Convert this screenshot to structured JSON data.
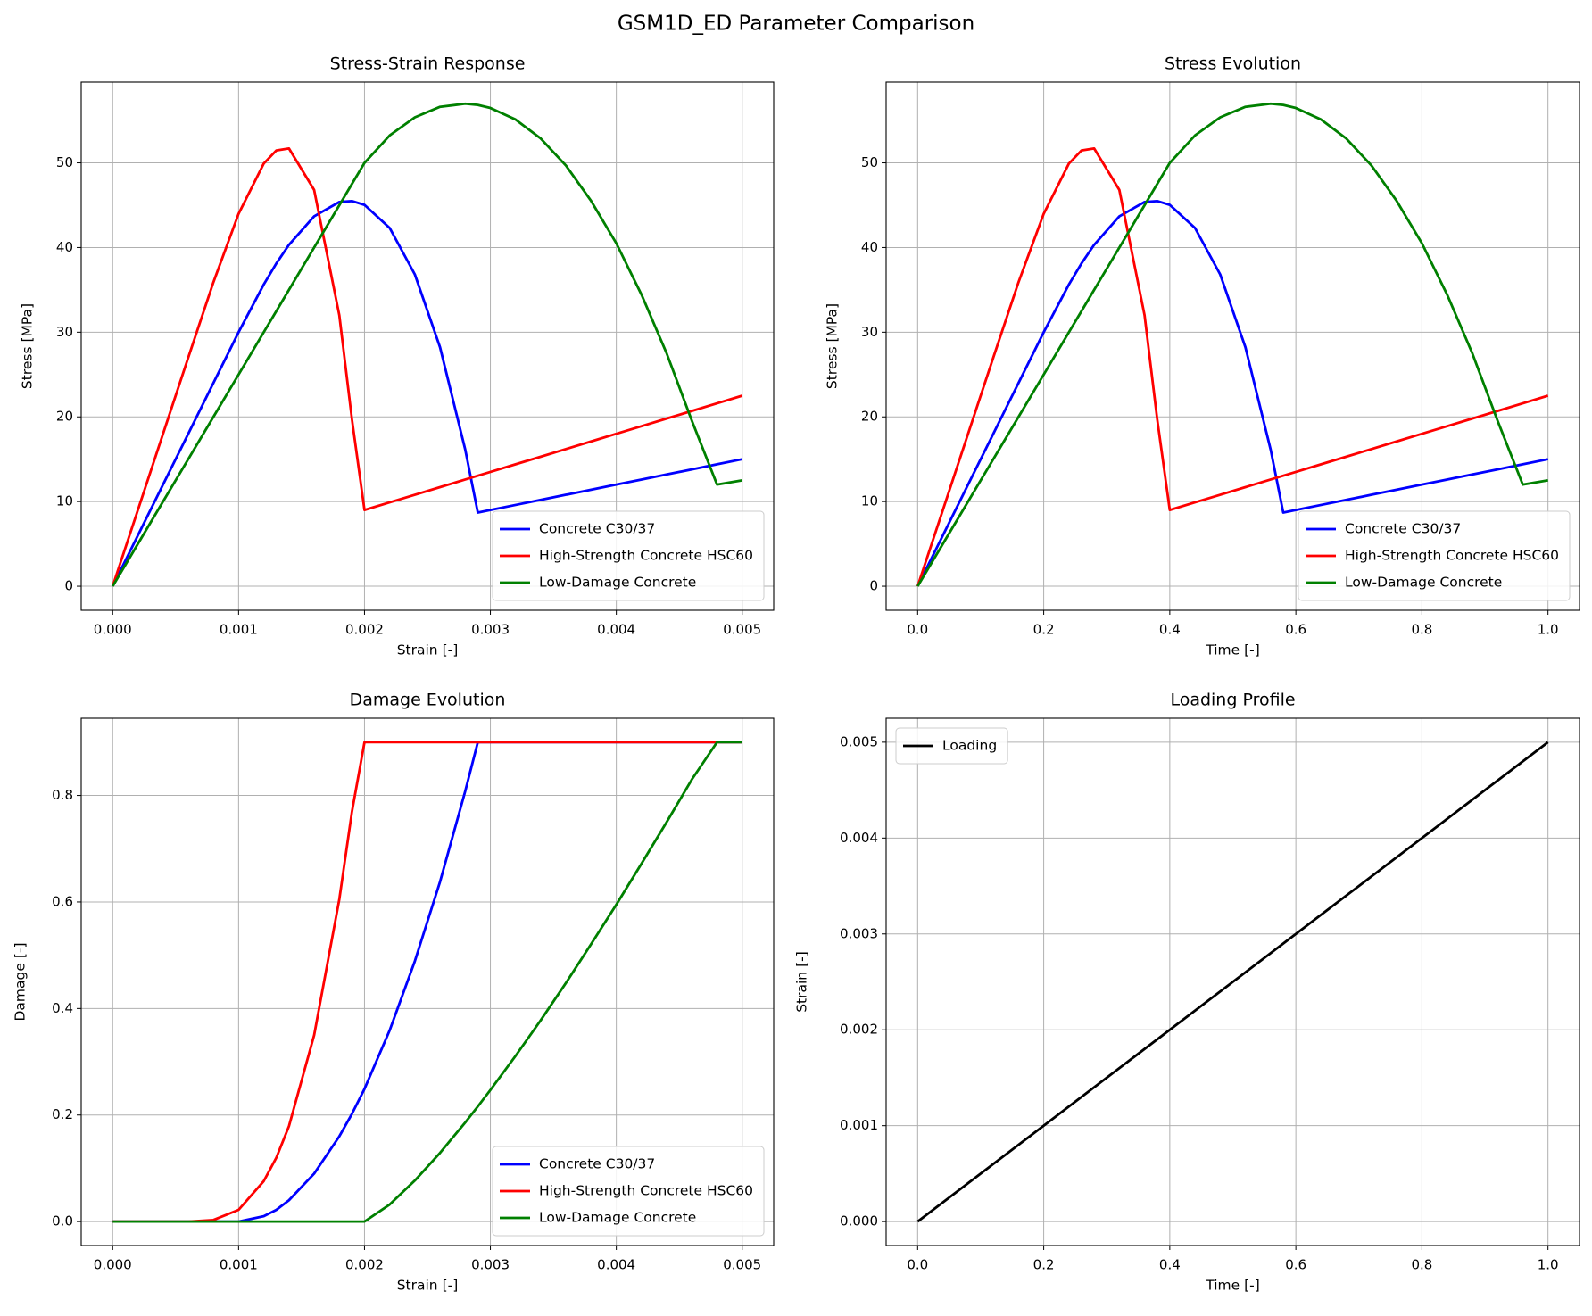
{
  "title": "GSM1D_ED Parameter Comparison",
  "chart_data": [
    {
      "type": "line",
      "title": "Stress-Strain Response",
      "xlabel": "Strain [-]",
      "ylabel": "Stress [MPa]",
      "x": [
        0,
        0.0002,
        0.0004,
        0.0006,
        0.0008,
        0.001,
        0.0012,
        0.0013,
        0.0014,
        0.0016,
        0.0018,
        0.0019,
        0.002,
        0.0022,
        0.0024,
        0.0026,
        0.0028,
        0.0029,
        0.003,
        0.0032,
        0.0034,
        0.0036,
        0.0038,
        0.004,
        0.0042,
        0.0044,
        0.0046,
        0.0048,
        0.005
      ],
      "series": [
        {
          "name": "Concrete C30/37",
          "color": "#0000ff",
          "values": [
            0,
            6,
            12,
            18,
            24,
            30,
            35.64,
            38.13,
            40.32,
            43.69,
            45.38,
            45.49,
            45.04,
            42.31,
            36.82,
            28.22,
            16.14,
            8.7,
            9,
            9.6,
            10.2,
            10.8,
            11.4,
            12,
            12.6,
            13.2,
            13.8,
            14.4,
            15
          ]
        },
        {
          "name": "High-Strength Concrete HSC60",
          "color": "#ff0000",
          "values": [
            0,
            9,
            18,
            27,
            35.9,
            43.99,
            49.92,
            51.47,
            51.7,
            46.8,
            32.0,
            19.75,
            9,
            9.9,
            10.8,
            11.7,
            12.6,
            13.05,
            13.5,
            14.4,
            15.3,
            16.2,
            17.1,
            18,
            18.9,
            19.8,
            20.7,
            21.6,
            22.5
          ]
        },
        {
          "name": "Low-Damage Concrete",
          "color": "#008000",
          "values": [
            0,
            5,
            10,
            15,
            20,
            25,
            30,
            32.5,
            35,
            40,
            45,
            47.5,
            50,
            53.24,
            55.38,
            56.62,
            56.98,
            56.84,
            56.48,
            55.12,
            52.87,
            49.68,
            45.5,
            40.5,
            34.44,
            27.5,
            19.55,
            12,
            12.5
          ]
        }
      ],
      "xlim": [
        -0.00025,
        0.00525
      ],
      "ylim": [
        -2.84,
        59.54
      ],
      "xticks": [
        {
          "value": 0,
          "label": "0.000"
        },
        {
          "value": 0.001,
          "label": "0.001"
        },
        {
          "value": 0.002,
          "label": "0.002"
        },
        {
          "value": 0.003,
          "label": "0.003"
        },
        {
          "value": 0.004,
          "label": "0.004"
        },
        {
          "value": 0.005,
          "label": "0.005"
        }
      ],
      "yticks": [
        0,
        10,
        20,
        30,
        40,
        50
      ],
      "grid": true,
      "legend": "lower right"
    },
    {
      "type": "line",
      "title": "Stress Evolution",
      "xlabel": "Time [-]",
      "ylabel": "Stress [MPa]",
      "x": [
        0,
        0.04,
        0.08,
        0.12,
        0.16,
        0.2,
        0.24,
        0.26,
        0.28,
        0.32,
        0.36,
        0.38,
        0.4,
        0.44,
        0.48,
        0.52,
        0.56,
        0.58,
        0.6,
        0.64,
        0.68,
        0.72,
        0.76,
        0.8,
        0.84,
        0.88,
        0.92,
        0.96,
        1
      ],
      "series": [
        {
          "name": "Concrete C30/37",
          "color": "#0000ff",
          "values": [
            0,
            6,
            12,
            18,
            24,
            30,
            35.64,
            38.13,
            40.32,
            43.69,
            45.38,
            45.49,
            45.04,
            42.31,
            36.82,
            28.22,
            16.14,
            8.7,
            9,
            9.6,
            10.2,
            10.8,
            11.4,
            12,
            12.6,
            13.2,
            13.8,
            14.4,
            15
          ]
        },
        {
          "name": "High-Strength Concrete HSC60",
          "color": "#ff0000",
          "values": [
            0,
            9,
            18,
            27,
            35.9,
            43.99,
            49.92,
            51.47,
            51.7,
            46.8,
            32.0,
            19.75,
            9,
            9.9,
            10.8,
            11.7,
            12.6,
            13.05,
            13.5,
            14.4,
            15.3,
            16.2,
            17.1,
            18,
            18.9,
            19.8,
            20.7,
            21.6,
            22.5
          ]
        },
        {
          "name": "Low-Damage Concrete",
          "color": "#008000",
          "values": [
            0,
            5,
            10,
            15,
            20,
            25,
            30,
            32.5,
            35,
            40,
            45,
            47.5,
            50,
            53.24,
            55.38,
            56.62,
            56.98,
            56.84,
            56.48,
            55.12,
            52.87,
            49.68,
            45.5,
            40.5,
            34.44,
            27.5,
            19.55,
            12,
            12.5
          ]
        }
      ],
      "xlim": [
        -0.05,
        1.05
      ],
      "ylim": [
        -2.84,
        59.54
      ],
      "xticks": [
        {
          "value": 0,
          "label": "0.0"
        },
        {
          "value": 0.2,
          "label": "0.2"
        },
        {
          "value": 0.4,
          "label": "0.4"
        },
        {
          "value": 0.6,
          "label": "0.6"
        },
        {
          "value": 0.8,
          "label": "0.8"
        },
        {
          "value": 1,
          "label": "1.0"
        }
      ],
      "yticks": [
        0,
        10,
        20,
        30,
        40,
        50
      ],
      "grid": true,
      "legend": "lower right"
    },
    {
      "type": "line",
      "title": "Damage Evolution",
      "xlabel": "Strain [-]",
      "ylabel": "Damage [-]",
      "x": [
        0,
        0.0002,
        0.0004,
        0.0006,
        0.0008,
        0.001,
        0.0012,
        0.0013,
        0.0014,
        0.0016,
        0.0018,
        0.0019,
        0.002,
        0.0022,
        0.0024,
        0.0026,
        0.0028,
        0.0029,
        0.003,
        0.0032,
        0.0034,
        0.0036,
        0.0038,
        0.004,
        0.0042,
        0.0044,
        0.0046,
        0.0048,
        0.005
      ],
      "series": [
        {
          "name": "Concrete C30/37",
          "color": "#0000ff",
          "values": [
            0,
            0,
            0,
            0,
            0,
            0,
            0.01,
            0.022,
            0.04,
            0.09,
            0.16,
            0.202,
            0.249,
            0.359,
            0.489,
            0.638,
            0.808,
            0.9,
            0.9,
            0.9,
            0.9,
            0.9,
            0.9,
            0.9,
            0.9,
            0.9,
            0.9,
            0.9,
            0.9
          ]
        },
        {
          "name": "High-Strength Concrete HSC60",
          "color": "#ff0000",
          "values": [
            0,
            0,
            0,
            0,
            0.003,
            0.022,
            0.076,
            0.12,
            0.179,
            0.35,
            0.605,
            0.769,
            0.9,
            0.9,
            0.9,
            0.9,
            0.9,
            0.9,
            0.9,
            0.9,
            0.9,
            0.9,
            0.9,
            0.9,
            0.9,
            0.9,
            0.9,
            0.9,
            0.9
          ]
        },
        {
          "name": "Low-Damage Concrete",
          "color": "#008000",
          "values": [
            0,
            0,
            0,
            0,
            0,
            0,
            0,
            0,
            0,
            0,
            0,
            0,
            0,
            0.032,
            0.077,
            0.129,
            0.186,
            0.216,
            0.247,
            0.311,
            0.378,
            0.448,
            0.521,
            0.595,
            0.672,
            0.75,
            0.83,
            0.9,
            0.9
          ]
        }
      ],
      "xlim": [
        -0.00025,
        0.00525
      ],
      "ylim": [
        -0.045,
        0.945
      ],
      "xticks": [
        {
          "value": 0,
          "label": "0.000"
        },
        {
          "value": 0.001,
          "label": "0.001"
        },
        {
          "value": 0.002,
          "label": "0.002"
        },
        {
          "value": 0.003,
          "label": "0.003"
        },
        {
          "value": 0.004,
          "label": "0.004"
        },
        {
          "value": 0.005,
          "label": "0.005"
        }
      ],
      "yticks": [
        {
          "value": 0,
          "label": "0.0"
        },
        0.2,
        0.4,
        0.6,
        0.8
      ],
      "grid": true,
      "legend": "lower right"
    },
    {
      "type": "line",
      "title": "Loading Profile",
      "xlabel": "Time [-]",
      "ylabel": "Strain [-]",
      "x": [
        0,
        1
      ],
      "series": [
        {
          "name": "Loading",
          "color": "#000000",
          "values": [
            0,
            0.005
          ]
        }
      ],
      "xlim": [
        -0.05,
        1.05
      ],
      "ylim": [
        -0.00025,
        0.00525
      ],
      "xticks": [
        {
          "value": 0,
          "label": "0.0"
        },
        {
          "value": 0.2,
          "label": "0.2"
        },
        {
          "value": 0.4,
          "label": "0.4"
        },
        {
          "value": 0.6,
          "label": "0.6"
        },
        {
          "value": 0.8,
          "label": "0.8"
        },
        {
          "value": 1,
          "label": "1.0"
        }
      ],
      "yticks": [
        {
          "value": 0,
          "label": "0.000"
        },
        {
          "value": 0.001,
          "label": "0.001"
        },
        {
          "value": 0.002,
          "label": "0.002"
        },
        {
          "value": 0.003,
          "label": "0.003"
        },
        {
          "value": 0.004,
          "label": "0.004"
        },
        {
          "value": 0.005,
          "label": "0.005"
        }
      ],
      "grid": true,
      "legend": "upper left"
    }
  ]
}
